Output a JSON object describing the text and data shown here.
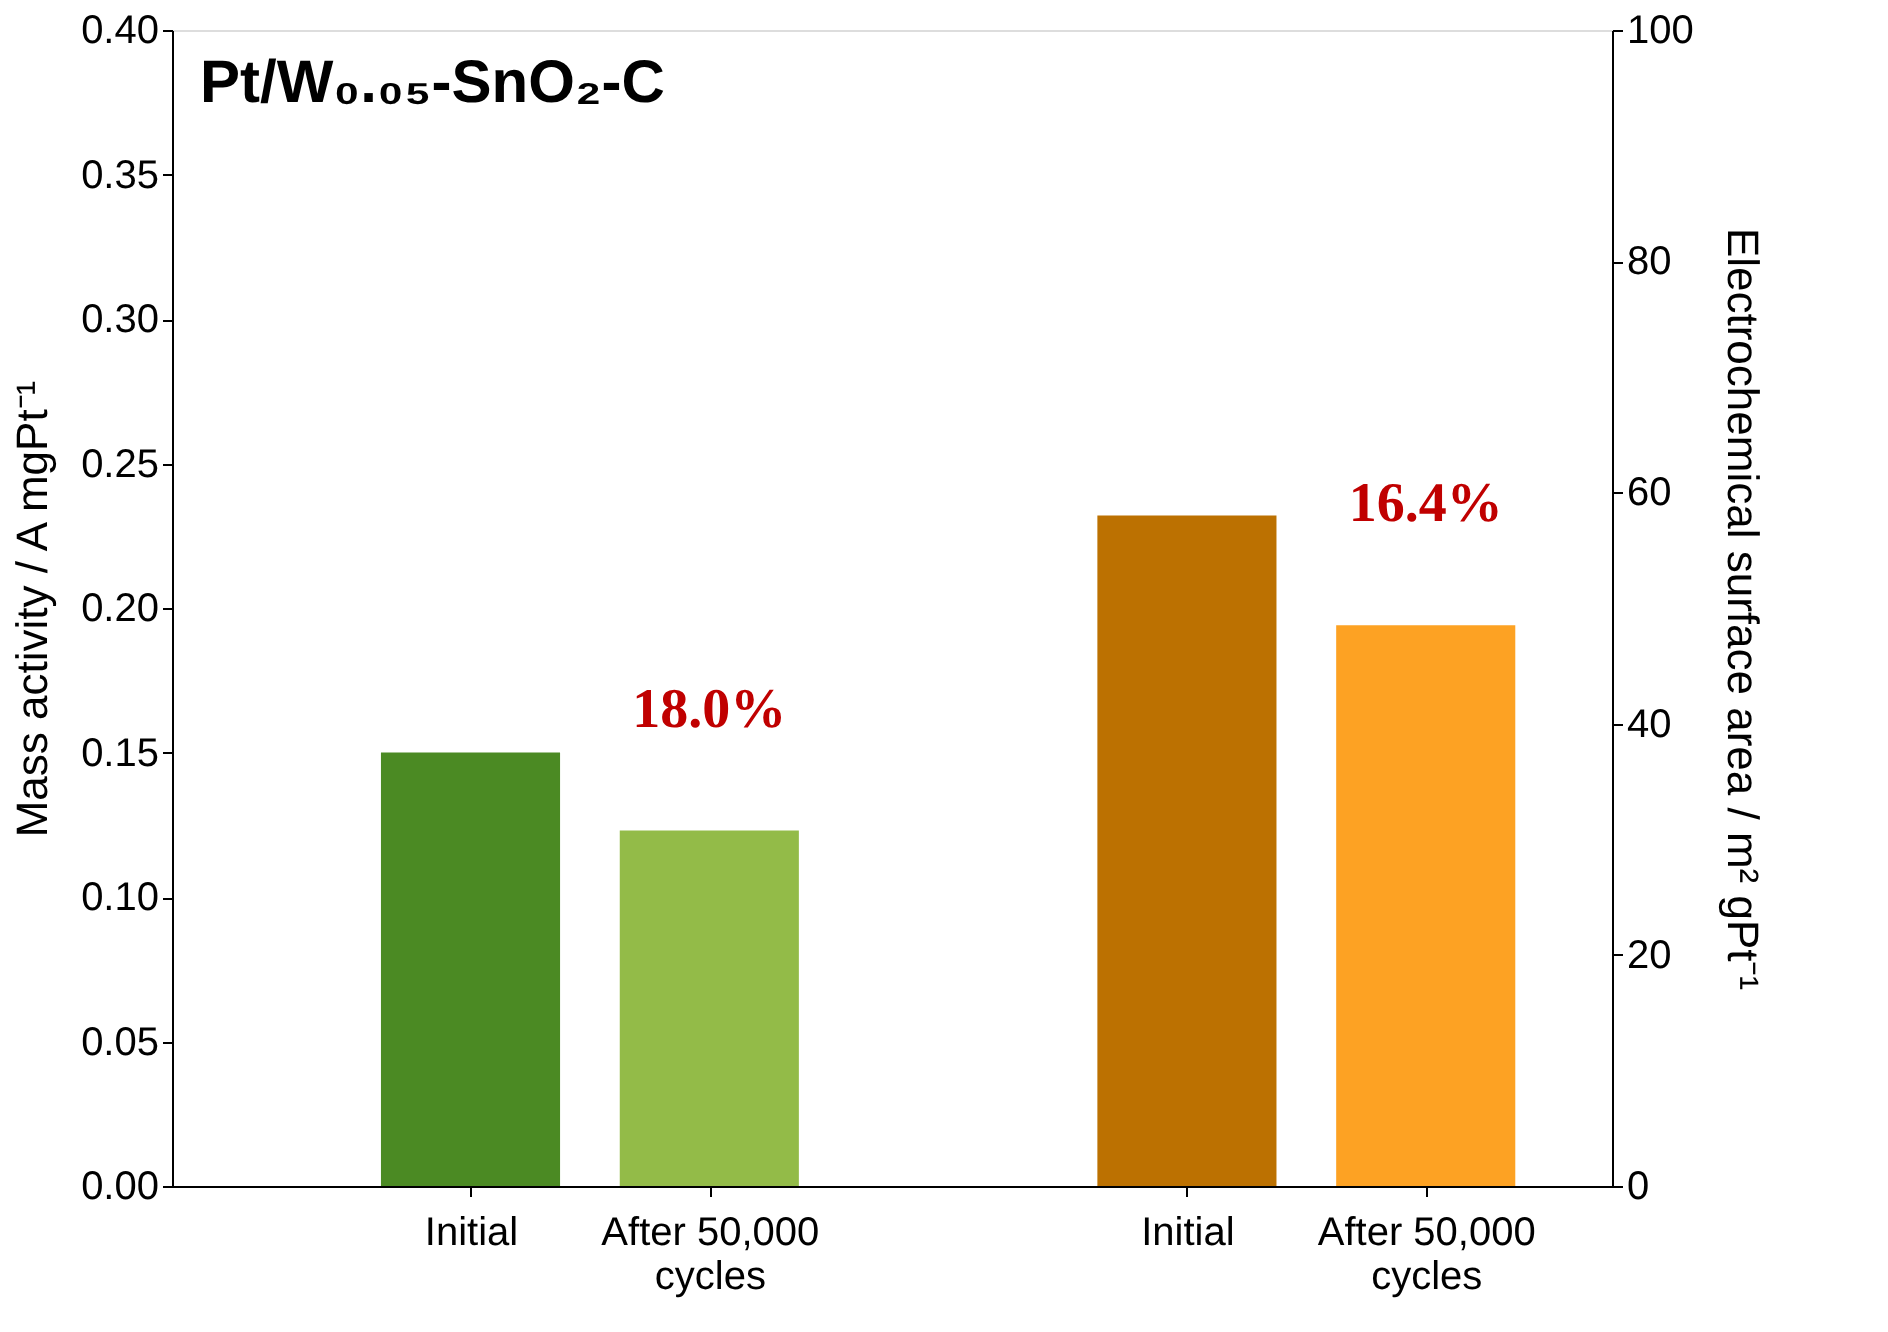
{
  "chart_data": {
    "type": "bar",
    "title": "Pt/W₀.₀₅-SnO₂-C",
    "categories": [
      "Initial",
      "After 50,000 cycles",
      "Initial",
      "After 50,000 cycles"
    ],
    "series": [
      {
        "values": [
          0.15,
          0.123,
          null,
          null
        ],
        "colors": [
          "#4b8a23",
          "#93bb48",
          null,
          null
        ],
        "axis": "y"
      },
      {
        "values": [
          null,
          null,
          58,
          48.5
        ],
        "colors": [
          null,
          null,
          "#bc7101",
          "#fda223"
        ],
        "axis": "y2"
      }
    ],
    "ylabel": "Mass activity / A mgPt⁻¹",
    "y2label": "Electrochemical surface area / m² gPt⁻¹",
    "ylim": [
      0,
      0.4
    ],
    "yticks": [
      {
        "value": 0,
        "label": "0.00"
      },
      0.05,
      {
        "value": 0.1,
        "label": "0.10"
      },
      0.15,
      {
        "value": 0.2,
        "label": "0.20"
      },
      0.25,
      {
        "value": 0.3,
        "label": "0.30"
      },
      0.35,
      {
        "value": 0.4,
        "label": "0.40"
      }
    ],
    "y2lim": [
      0,
      100
    ],
    "y2ticks": [
      0,
      20,
      40,
      60,
      80,
      100
    ],
    "annotations": [
      "18.0%",
      "16.4%"
    ],
    "grid": false
  }
}
